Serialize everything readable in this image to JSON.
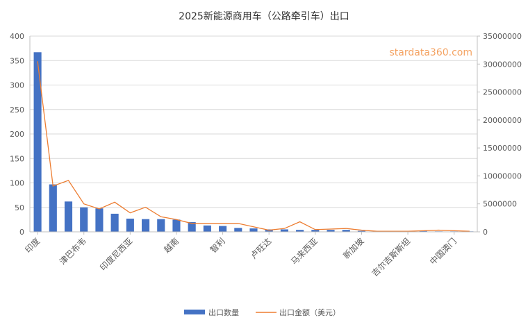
{
  "chart_data": {
    "type": "bar+line",
    "title": "2025新能源商用车（公路牵引车）出口",
    "watermark": "stardata360.com",
    "categories_visible": [
      "印度",
      "津巴布韦",
      "印度尼西亚",
      "越南",
      "智利",
      "卢旺达",
      "马来西亚",
      "新加坡",
      "吉尔吉斯斯坦",
      "中国澳门"
    ],
    "label_every": 3,
    "series": [
      {
        "name": "出口数量",
        "type": "bar",
        "axis": "left",
        "color": "#4472C4",
        "values": [
          367,
          97,
          62,
          50,
          48,
          37,
          27,
          26,
          26,
          25,
          20,
          13,
          12,
          8,
          7,
          5,
          5,
          4,
          4,
          4,
          4,
          2,
          2,
          1,
          1,
          2,
          1,
          1,
          1
        ]
      },
      {
        "name": "出口金额（美元）",
        "type": "line",
        "axis": "right",
        "color": "#ED7D31",
        "values": [
          30500000,
          8200000,
          9200000,
          5000000,
          4100000,
          5300000,
          3400000,
          4400000,
          2700000,
          2200000,
          1500000,
          1500000,
          1500000,
          1500000,
          900000,
          300000,
          600000,
          1800000,
          400000,
          500000,
          600000,
          300000,
          100000,
          100000,
          100000,
          200000,
          300000,
          200000,
          100000
        ]
      }
    ],
    "ylim_left": [
      0,
      400
    ],
    "yticks_left": [
      0,
      50,
      100,
      150,
      200,
      250,
      300,
      350,
      400
    ],
    "ylim_right": [
      0,
      35000000
    ],
    "yticks_right": [
      0,
      5000000,
      10000000,
      15000000,
      20000000,
      25000000,
      30000000,
      35000000
    ],
    "grid": true,
    "legend": "bottom"
  }
}
